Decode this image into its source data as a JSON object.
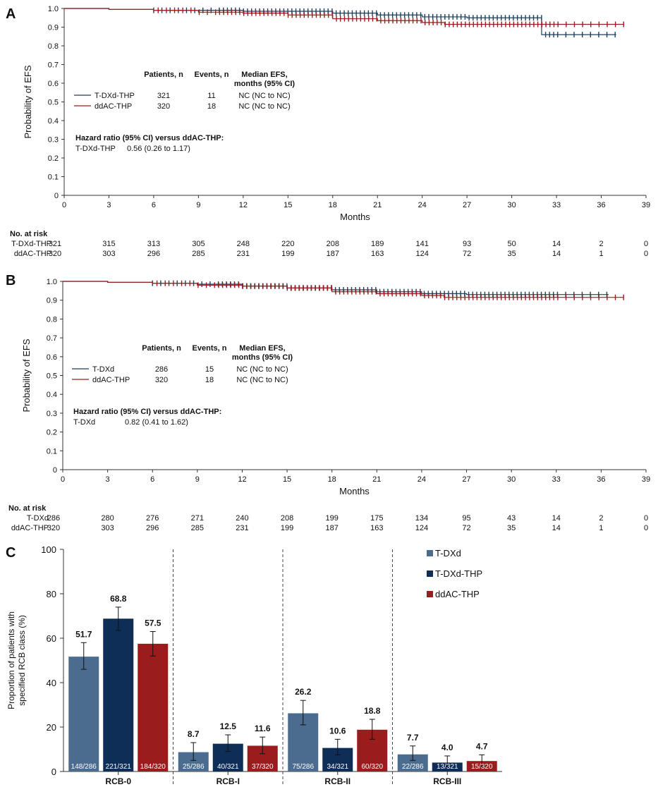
{
  "chart_data": [
    {
      "type": "line",
      "panel": "A",
      "ylabel": "Probability of EFS",
      "xlabel": "Months",
      "xlim": [
        0,
        39
      ],
      "ylim": [
        0,
        1.0
      ],
      "xticks": [
        0,
        3,
        6,
        9,
        12,
        15,
        18,
        21,
        24,
        27,
        30,
        33,
        36,
        39
      ],
      "yticks": [
        "0",
        "0.1",
        "0.2",
        "0.3",
        "0.4",
        "0.5",
        "0.6",
        "0.7",
        "0.8",
        "0.9",
        "1.0"
      ],
      "legend_header": {
        "col1": "Patients, n",
        "col2": "Events, n",
        "col3a": "Median EFS,",
        "col3b": "months (95% CI)"
      },
      "series": [
        {
          "name": "T-DXd-THP",
          "color": "#1f3f5f",
          "patients": "321",
          "events": "11",
          "median": "NC (NC to NC)",
          "x": [
            0,
            3,
            6,
            9,
            12,
            15,
            18,
            21,
            24,
            27,
            30,
            32,
            37
          ],
          "y": [
            1.0,
            0.995,
            0.99,
            0.99,
            0.985,
            0.985,
            0.975,
            0.965,
            0.955,
            0.95,
            0.95,
            0.86,
            0.86
          ]
        },
        {
          "name": "ddAC-THP",
          "color": "#9b1c1c",
          "patients": "320",
          "events": "18",
          "median": "NC (NC to NC)",
          "x": [
            0,
            3,
            6,
            9,
            12,
            15,
            18,
            21,
            24,
            25.5,
            27,
            30,
            33,
            36,
            37.5
          ],
          "y": [
            1.0,
            0.995,
            0.99,
            0.98,
            0.975,
            0.965,
            0.945,
            0.935,
            0.925,
            0.915,
            0.915,
            0.915,
            0.915,
            0.915,
            0.915
          ]
        }
      ],
      "hazard_title": "Hazard ratio (95% CI) versus ddAC-THP:",
      "hazard_row": {
        "label": "T-DXd-THP",
        "value": "0.56 (0.26 to 1.17)"
      },
      "risk_title": "No. at risk",
      "risk_rows": [
        {
          "label": "T-DXd-THP",
          "values": [
            "321",
            "315",
            "313",
            "305",
            "248",
            "220",
            "208",
            "189",
            "141",
            "93",
            "50",
            "14",
            "2",
            "0"
          ]
        },
        {
          "label": "ddAC-THP",
          "values": [
            "320",
            "303",
            "296",
            "285",
            "231",
            "199",
            "187",
            "163",
            "124",
            "72",
            "35",
            "14",
            "1",
            "0"
          ]
        }
      ]
    },
    {
      "type": "line",
      "panel": "B",
      "ylabel": "Probability of EFS",
      "xlabel": "Months",
      "xlim": [
        0,
        39
      ],
      "ylim": [
        0,
        1.0
      ],
      "xticks": [
        0,
        3,
        6,
        9,
        12,
        15,
        18,
        21,
        24,
        27,
        30,
        33,
        36,
        39
      ],
      "yticks": [
        "0",
        "0.1",
        "0.2",
        "0.3",
        "0.4",
        "0.5",
        "0.6",
        "0.7",
        "0.8",
        "0.9",
        "1.0"
      ],
      "legend_header": {
        "col1": "Patients, n",
        "col2": "Events, n",
        "col3a": "Median EFS,",
        "col3b": "months (95% CI)"
      },
      "series": [
        {
          "name": "T-DXd",
          "color": "#1f3f5f",
          "patients": "286",
          "events": "15",
          "median": "NC (NC to NC)",
          "x": [
            0,
            3,
            6,
            9,
            12,
            15,
            18,
            21,
            24,
            27,
            30,
            33,
            36.5
          ],
          "y": [
            1.0,
            0.995,
            0.99,
            0.985,
            0.975,
            0.965,
            0.955,
            0.945,
            0.935,
            0.93,
            0.93,
            0.93,
            0.93
          ]
        },
        {
          "name": "ddAC-THP",
          "color": "#9b1c1c",
          "patients": "320",
          "events": "18",
          "median": "NC (NC to NC)",
          "x": [
            0,
            3,
            6,
            9,
            12,
            15,
            18,
            21,
            24,
            25.5,
            27,
            30,
            33,
            36,
            37.5
          ],
          "y": [
            1.0,
            0.995,
            0.99,
            0.98,
            0.975,
            0.965,
            0.945,
            0.935,
            0.925,
            0.915,
            0.915,
            0.915,
            0.915,
            0.915,
            0.915
          ]
        }
      ],
      "hazard_title": "Hazard ratio (95% CI) versus ddAC-THP:",
      "hazard_row": {
        "label": "T-DXd",
        "value": "0.82 (0.41 to 1.62)"
      },
      "risk_title": "No. at risk",
      "risk_rows": [
        {
          "label": "T-DXd",
          "values": [
            "286",
            "280",
            "276",
            "271",
            "240",
            "208",
            "199",
            "175",
            "134",
            "95",
            "43",
            "14",
            "2",
            "0"
          ]
        },
        {
          "label": "ddAC-THP",
          "values": [
            "320",
            "303",
            "296",
            "285",
            "231",
            "199",
            "187",
            "163",
            "124",
            "72",
            "35",
            "14",
            "1",
            "0"
          ]
        }
      ]
    },
    {
      "type": "bar",
      "panel": "C",
      "ylabel_line1": "Proportion of patients with",
      "ylabel_line2": "specified RCB class (%)",
      "ylim": [
        0,
        100
      ],
      "yticks": [
        "0",
        "20",
        "40",
        "60",
        "80",
        "100"
      ],
      "categories": [
        "RCB-0",
        "RCB-I",
        "RCB-II",
        "RCB-III"
      ],
      "series": [
        {
          "name": "T-DXd",
          "color": "#4b6c8e",
          "values": [
            51.7,
            8.7,
            26.2,
            7.7
          ],
          "labels": [
            "51.7",
            "8.7",
            "26.2",
            "7.7"
          ],
          "counts": [
            "148/286",
            "25/286",
            "75/286",
            "22/286"
          ],
          "ci": [
            [
              46,
              58
            ],
            [
              5,
              13
            ],
            [
              21,
              32
            ],
            [
              5,
              11.5
            ]
          ]
        },
        {
          "name": "T-DXd-THP",
          "color": "#0e2d57",
          "values": [
            68.8,
            12.5,
            10.6,
            4.0
          ],
          "labels": [
            "68.8",
            "12.5",
            "10.6",
            "4.0"
          ],
          "counts": [
            "221/321",
            "40/321",
            "34/321",
            "13/321"
          ],
          "ci": [
            [
              63.5,
              74
            ],
            [
              9,
              16.5
            ],
            [
              7.5,
              14.5
            ],
            [
              2,
              7
            ]
          ]
        },
        {
          "name": "ddAC-THP",
          "color": "#9b1c1c",
          "values": [
            57.5,
            11.6,
            18.8,
            4.7
          ],
          "labels": [
            "57.5",
            "11.6",
            "18.8",
            "4.7"
          ],
          "counts": [
            "184/320",
            "37/320",
            "60/320",
            "15/320"
          ],
          "ci": [
            [
              52,
              63
            ],
            [
              8,
              15.5
            ],
            [
              14.5,
              23.5
            ],
            [
              2.5,
              7.5
            ]
          ]
        }
      ]
    }
  ]
}
